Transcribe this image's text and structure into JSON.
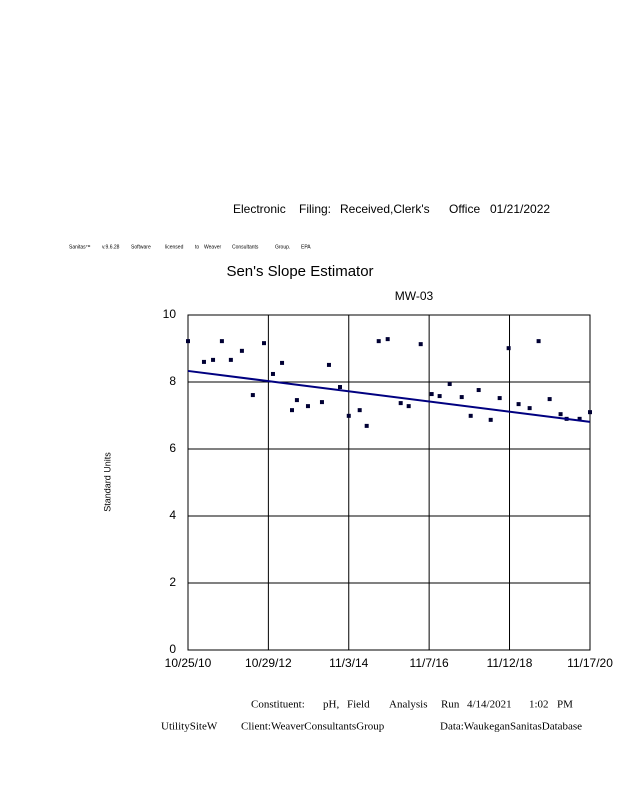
{
  "header": {
    "filing": [
      "Electronic",
      "Filing:",
      "Received,Clerk's",
      "Office",
      "01/21/2022"
    ],
    "license": [
      "Sanitas™",
      "v.9.6.28",
      "Software",
      "licensed",
      "to",
      "Weaver",
      "Consultants",
      "Group.",
      "EPA"
    ]
  },
  "chart_data": {
    "type": "scatter",
    "title": "Sen's Slope Estimator",
    "subtitle": "MW-03",
    "y_label": "Standard Units",
    "x": [
      "10/25/10",
      "3/20/11",
      "6/11/11",
      "8/31/11",
      "11/21/11",
      "3/1/12",
      "6/9/12",
      "9/19/12",
      "12/10/12",
      "3/3/13",
      "6/2/13",
      "7/17/13",
      "10/26/13",
      "3/3/14",
      "5/6/14",
      "8/15/14",
      "11/3/14",
      "2/11/15",
      "4/16/15",
      "8/4/15",
      "10/25/15",
      "2/21/16",
      "5/4/16",
      "8/22/16",
      "11/30/16",
      "2/11/17",
      "5/14/17",
      "9/1/17",
      "11/22/17",
      "2/3/18",
      "5/24/18",
      "8/14/18",
      "11/4/18",
      "2/3/19",
      "5/15/19",
      "8/5/19",
      "11/14/19",
      "2/22/20",
      "4/17/20",
      "8/14/20",
      "11/17/20"
    ],
    "values": [
      9.22,
      8.6,
      8.66,
      9.22,
      8.66,
      8.93,
      7.61,
      9.16,
      8.24,
      8.57,
      7.16,
      7.46,
      7.28,
      7.4,
      8.51,
      7.85,
      6.99,
      7.16,
      6.69,
      9.22,
      9.28,
      7.37,
      7.28,
      9.13,
      7.64,
      7.58,
      7.94,
      7.55,
      6.99,
      7.76,
      6.87,
      7.52,
      9.01,
      7.34,
      7.22,
      9.22,
      7.49,
      7.04,
      6.9,
      6.9,
      7.1
    ],
    "color": "#000033",
    "trend": {
      "x": [
        "10/25/10",
        "11/17/20"
      ],
      "values": [
        8.33,
        6.81
      ],
      "color": "#000080"
    },
    "xlim": [
      "10/25/10",
      "11/17/20"
    ],
    "xticks": [
      "10/25/10",
      "10/29/12",
      "11/3/14",
      "11/7/16",
      "11/12/18",
      "11/17/20"
    ],
    "ylim": [
      0,
      10
    ],
    "yticks": [
      0,
      2,
      4,
      6,
      8,
      10
    ],
    "grid": true
  },
  "footer": {
    "line1": [
      "Constituent:",
      "pH,",
      "Field",
      "Analysis",
      "Run",
      "4/14/2021",
      "1:02",
      "PM"
    ],
    "line2": [
      "UtilitySiteW",
      "Client:WeaverConsultantsGroup",
      "Data:WaukeganSanitasDatabase"
    ]
  }
}
